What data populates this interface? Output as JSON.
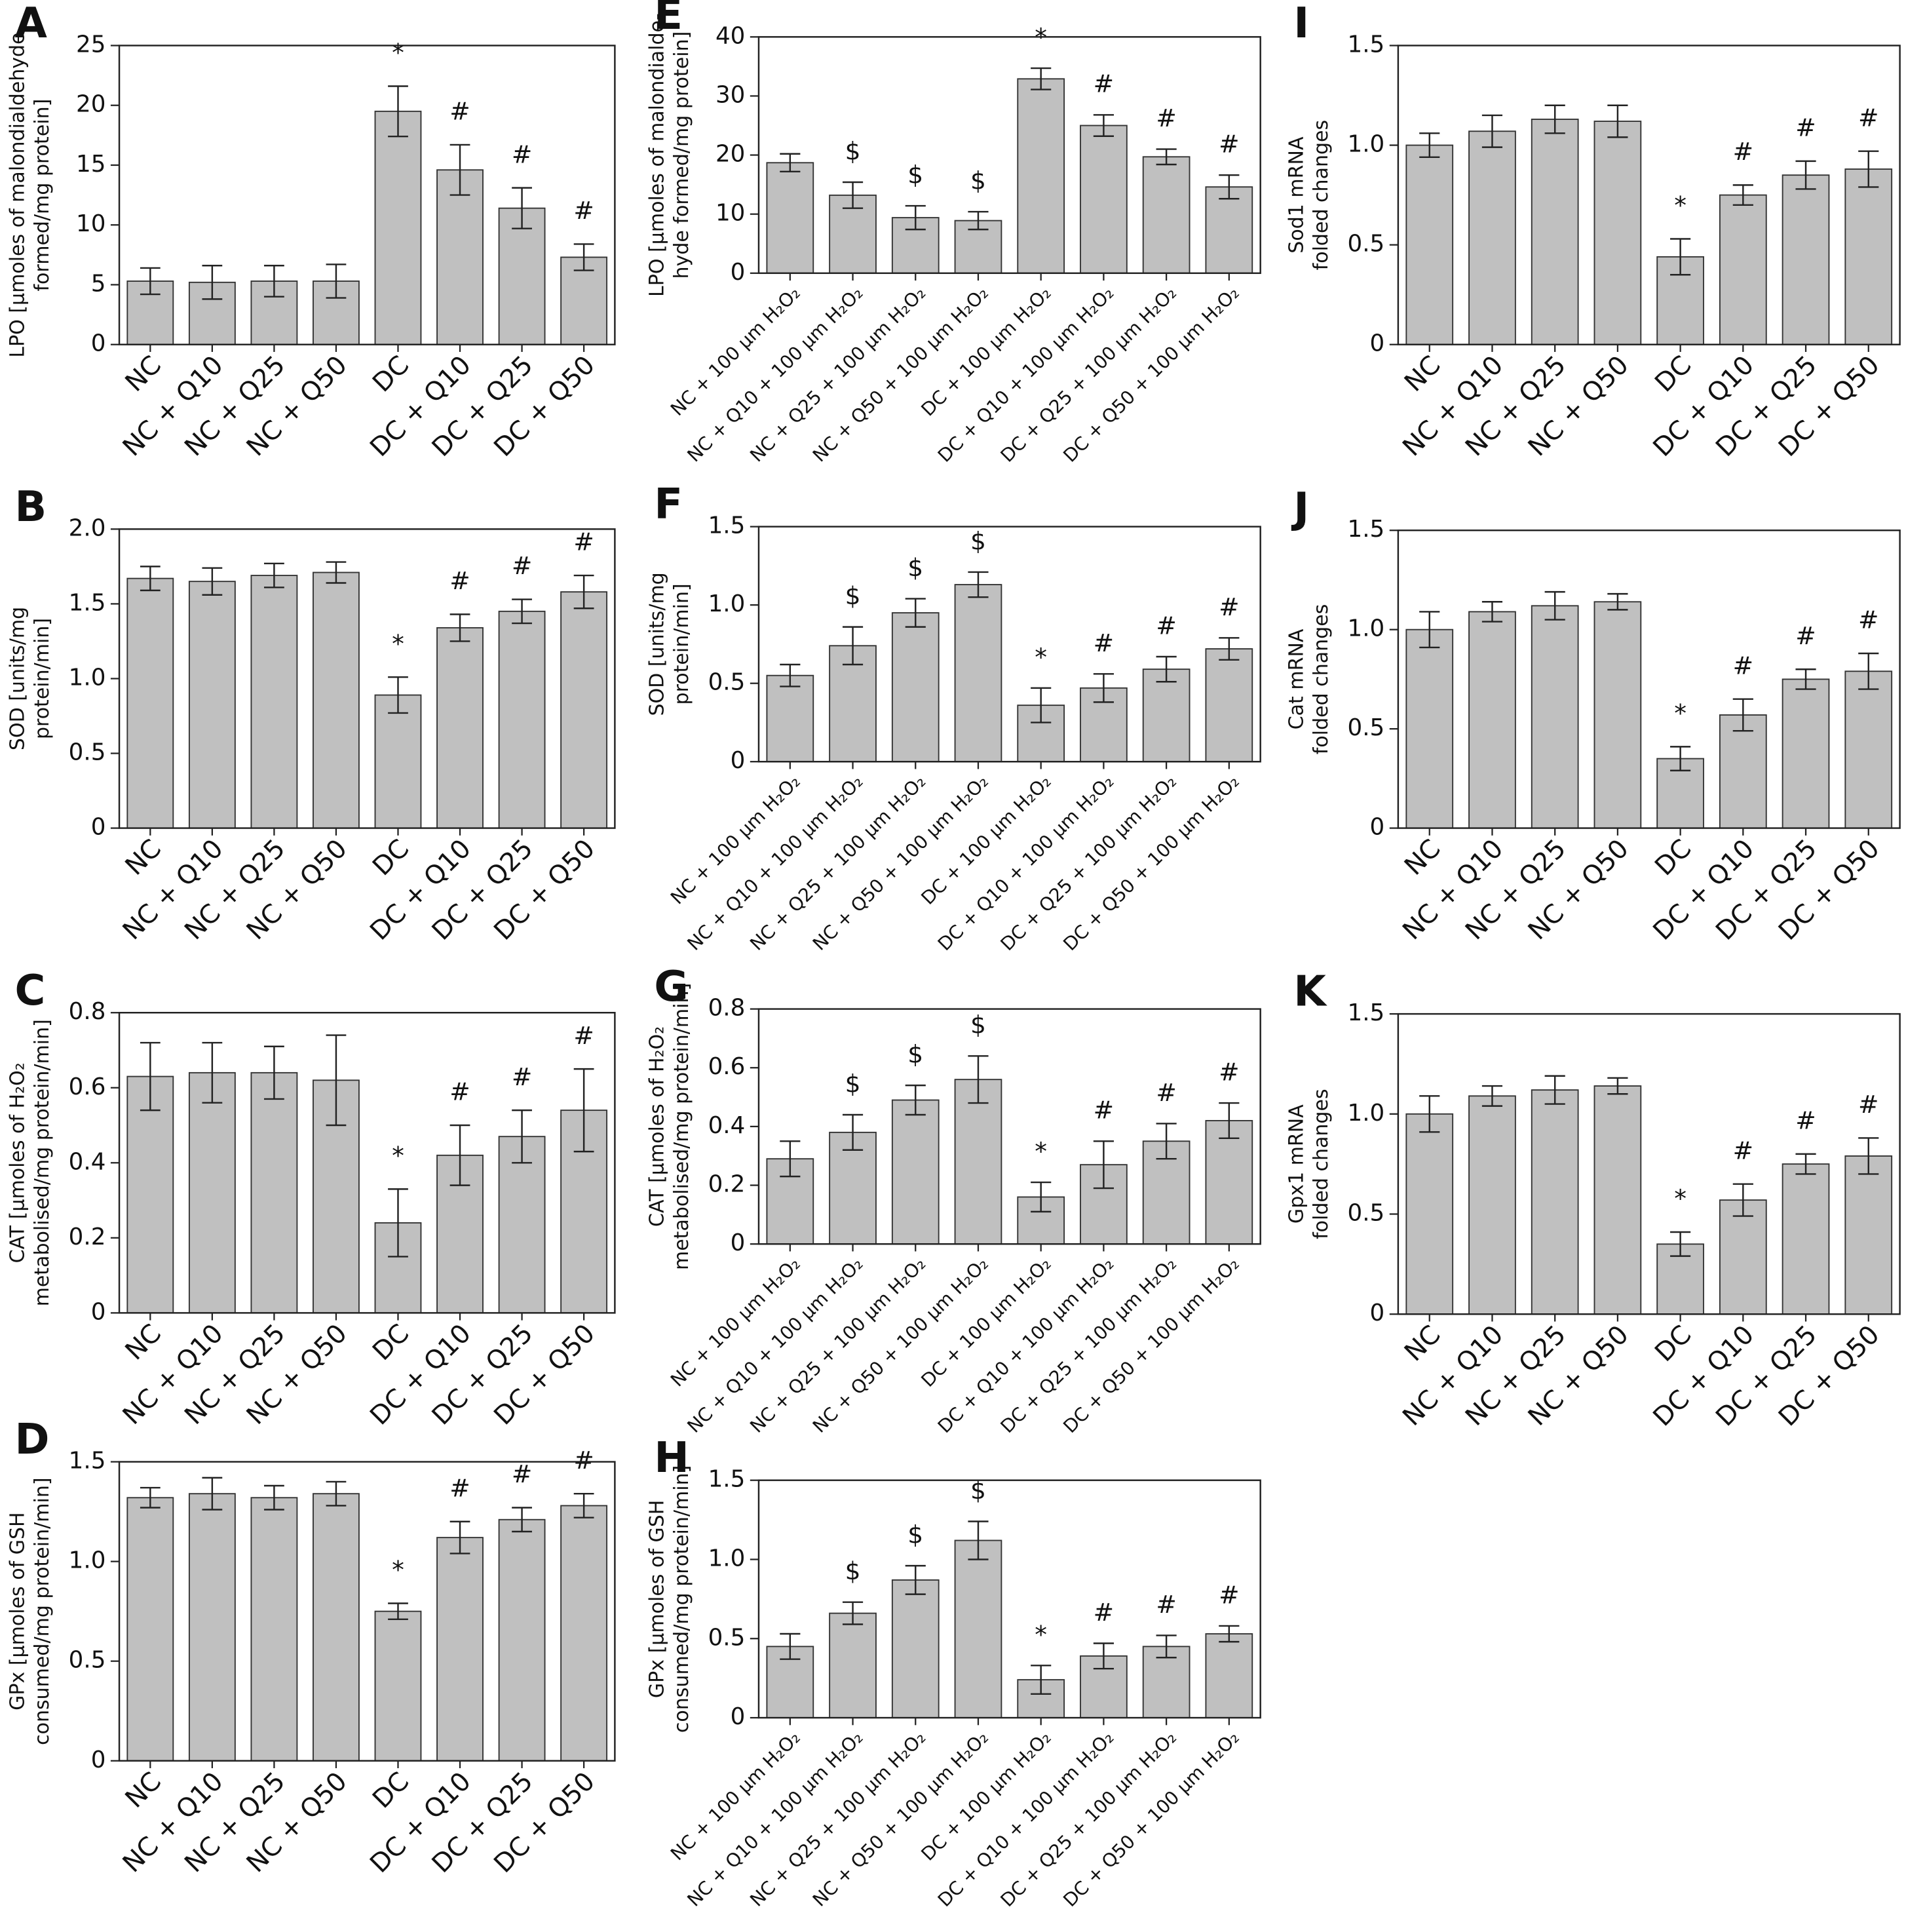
{
  "chart_data": [
    {
      "type": "bar",
      "title": "A",
      "ylabel": [
        "LPO [μmoles of malondialdehyde",
        "formed/mg protein]"
      ],
      "categories": [
        "NC",
        "NC + Q10",
        "NC + Q25",
        "NC + Q50",
        "DC",
        "DC + Q10",
        "DC + Q25",
        "DC + Q50"
      ],
      "values": [
        5.3,
        5.2,
        5.3,
        5.3,
        19.5,
        14.6,
        11.4,
        7.3
      ],
      "errors": [
        1.1,
        1.4,
        1.3,
        1.4,
        2.1,
        2.1,
        1.7,
        1.1
      ],
      "annotations": [
        null,
        null,
        null,
        null,
        "*",
        "#",
        "#",
        "#"
      ],
      "color": "#c0c0c0",
      "ylim": [
        0,
        25
      ],
      "yticks": [
        0,
        5,
        10,
        15,
        20,
        25
      ]
    },
    {
      "type": "bar",
      "title": "B",
      "ylabel": [
        "SOD [units/mg",
        "protein/min]"
      ],
      "categories": [
        "NC",
        "NC + Q10",
        "NC + Q25",
        "NC + Q50",
        "DC",
        "DC + Q10",
        "DC + Q25",
        "DC + Q50"
      ],
      "values": [
        1.67,
        1.65,
        1.69,
        1.71,
        0.89,
        1.34,
        1.45,
        1.58
      ],
      "errors": [
        0.08,
        0.09,
        0.08,
        0.07,
        0.12,
        0.09,
        0.08,
        0.11
      ],
      "annotations": [
        null,
        null,
        null,
        null,
        "*",
        "#",
        "#",
        "#"
      ],
      "color": "#c0c0c0",
      "ylim": [
        0,
        2
      ],
      "yticks": [
        0,
        0.5,
        {
          "value": 1,
          "label": "1.0"
        },
        1.5,
        {
          "value": 2,
          "label": "2.0"
        }
      ]
    },
    {
      "type": "bar",
      "title": "C",
      "ylabel": [
        "CAT [μmoles of H₂O₂",
        "metabolised/mg protein/min]"
      ],
      "categories": [
        "NC",
        "NC + Q10",
        "NC + Q25",
        "NC + Q50",
        "DC",
        "DC + Q10",
        "DC + Q25",
        "DC + Q50"
      ],
      "values": [
        0.63,
        0.64,
        0.64,
        0.62,
        0.24,
        0.42,
        0.47,
        0.54
      ],
      "errors": [
        0.09,
        0.08,
        0.07,
        0.12,
        0.09,
        0.08,
        0.07,
        0.11
      ],
      "annotations": [
        null,
        null,
        null,
        null,
        "*",
        "#",
        "#",
        "#"
      ],
      "color": "#c0c0c0",
      "ylim": [
        0,
        0.8
      ],
      "yticks": [
        0,
        0.2,
        0.4,
        0.6,
        0.8
      ]
    },
    {
      "type": "bar",
      "title": "D",
      "ylabel": [
        "GPx [μmoles of GSH",
        "consumed/mg protein/min]"
      ],
      "categories": [
        "NC",
        "NC + Q10",
        "NC + Q25",
        "NC + Q50",
        "DC",
        "DC + Q10",
        "DC + Q25",
        "DC + Q50"
      ],
      "values": [
        1.32,
        1.34,
        1.32,
        1.34,
        0.75,
        1.12,
        1.21,
        1.28
      ],
      "errors": [
        0.05,
        0.08,
        0.06,
        0.06,
        0.04,
        0.08,
        0.06,
        0.06
      ],
      "annotations": [
        null,
        null,
        null,
        null,
        "*",
        "#",
        "#",
        "#"
      ],
      "color": "#c0c0c0",
      "ylim": [
        0,
        1.5
      ],
      "yticks": [
        0,
        0.5,
        {
          "value": 1,
          "label": "1.0"
        },
        1.5
      ]
    },
    {
      "type": "bar",
      "title": "E",
      "ylabel": [
        "LPO [μmoles of malondialde-",
        "hyde formed/mg protein]"
      ],
      "categories": [
        "NC + 100 μm H₂O₂",
        "NC + Q10 + 100 μm H₂O₂",
        "NC + Q25 + 100 μm H₂O₂",
        "NC + Q50 + 100 μm H₂O₂",
        "DC + 100 μm H₂O₂",
        "DC + Q10 + 100 μm H₂O₂",
        "DC + Q25 + 100 μm H₂O₂",
        "DC + Q50 + 100 μm H₂O₂"
      ],
      "values": [
        18.7,
        13.2,
        9.4,
        8.9,
        32.9,
        25.0,
        19.7,
        14.6
      ],
      "errors": [
        1.5,
        2.2,
        2.0,
        1.5,
        1.8,
        1.8,
        1.3,
        2.0
      ],
      "annotations": [
        null,
        "$",
        "$",
        "$",
        "*",
        "#",
        "#",
        "#"
      ],
      "color": "#c0c0c0",
      "ylim": [
        0,
        40
      ],
      "yticks": [
        0,
        10,
        20,
        30,
        40
      ]
    },
    {
      "type": "bar",
      "title": "F",
      "ylabel": [
        "SOD [units/mg",
        "protein/min]"
      ],
      "categories": [
        "NC + 100 μm H₂O₂",
        "NC + Q10 + 100 μm H₂O₂",
        "NC + Q25 + 100 μm H₂O₂",
        "NC + Q50 + 100 μm H₂O₂",
        "DC + 100 μm H₂O₂",
        "DC + Q10 + 100 μm H₂O₂",
        "DC + Q25 + 100 μm H₂O₂",
        "DC + Q50 + 100 μm H₂O₂"
      ],
      "values": [
        0.55,
        0.74,
        0.95,
        1.13,
        0.36,
        0.47,
        0.59,
        0.72
      ],
      "errors": [
        0.07,
        0.12,
        0.09,
        0.08,
        0.11,
        0.09,
        0.08,
        0.07
      ],
      "annotations": [
        null,
        "$",
        "$",
        "$",
        "*",
        "#",
        "#",
        "#"
      ],
      "color": "#c0c0c0",
      "ylim": [
        0,
        1.5
      ],
      "yticks": [
        0,
        0.5,
        {
          "value": 1,
          "label": "1.0"
        },
        1.5
      ]
    },
    {
      "type": "bar",
      "title": "G",
      "ylabel": [
        "CAT [μmoles of H₂O₂",
        "metabolised/mg protein/min]"
      ],
      "categories": [
        "NC + 100 μm H₂O₂",
        "NC + Q10 + 100 μm H₂O₂",
        "NC + Q25 + 100 μm H₂O₂",
        "NC + Q50 + 100 μm H₂O₂",
        "DC + 100 μm H₂O₂",
        "DC + Q10 + 100 μm H₂O₂",
        "DC + Q25 + 100 μm H₂O₂",
        "DC + Q50 + 100 μm H₂O₂"
      ],
      "values": [
        0.29,
        0.38,
        0.49,
        0.56,
        0.16,
        0.27,
        0.35,
        0.42
      ],
      "errors": [
        0.06,
        0.06,
        0.05,
        0.08,
        0.05,
        0.08,
        0.06,
        0.06
      ],
      "annotations": [
        null,
        "$",
        "$",
        "$",
        "*",
        "#",
        "#",
        "#"
      ],
      "color": "#c0c0c0",
      "ylim": [
        0,
        0.8
      ],
      "yticks": [
        0,
        0.2,
        0.4,
        0.6,
        0.8
      ]
    },
    {
      "type": "bar",
      "title": "H",
      "ylabel": [
        "GPx [μmoles of GSH",
        "consumed/mg protein/min]"
      ],
      "categories": [
        "NC + 100 μm H₂O₂",
        "NC + Q10 + 100 μm H₂O₂",
        "NC + Q25 + 100 μm H₂O₂",
        "NC + Q50 + 100 μm H₂O₂",
        "DC + 100 μm H₂O₂",
        "DC + Q10 + 100 μm H₂O₂",
        "DC + Q25 + 100 μm H₂O₂",
        "DC + Q50 + 100 μm H₂O₂"
      ],
      "values": [
        0.45,
        0.66,
        0.87,
        1.12,
        0.24,
        0.39,
        0.45,
        0.53
      ],
      "errors": [
        0.08,
        0.07,
        0.09,
        0.12,
        0.09,
        0.08,
        0.07,
        0.05
      ],
      "annotations": [
        null,
        "$",
        "$",
        "$",
        "*",
        "#",
        "#",
        "#"
      ],
      "color": "#c0c0c0",
      "ylim": [
        0,
        1.5
      ],
      "yticks": [
        0,
        0.5,
        {
          "value": 1,
          "label": "1.0"
        },
        1.5
      ]
    },
    {
      "type": "bar",
      "title": "I",
      "ylabel": [
        "Sod1 mRNA",
        "folded changes"
      ],
      "categories": [
        "NC",
        "NC + Q10",
        "NC + Q25",
        "NC + Q50",
        "DC",
        "DC + Q10",
        "DC + Q25",
        "DC + Q50"
      ],
      "values": [
        1.0,
        1.07,
        1.13,
        1.12,
        0.44,
        0.75,
        0.85,
        0.88
      ],
      "errors": [
        0.06,
        0.08,
        0.07,
        0.08,
        0.09,
        0.05,
        0.07,
        0.09
      ],
      "annotations": [
        null,
        null,
        null,
        null,
        "*",
        "#",
        "#",
        "#"
      ],
      "color": "#c0c0c0",
      "ylim": [
        0,
        1.5
      ],
      "yticks": [
        0,
        0.5,
        {
          "value": 1,
          "label": "1.0"
        },
        1.5
      ]
    },
    {
      "type": "bar",
      "title": "J",
      "ylabel": [
        "Cat mRNA",
        "folded changes"
      ],
      "categories": [
        "NC",
        "NC + Q10",
        "NC + Q25",
        "NC + Q50",
        "DC",
        "DC + Q10",
        "DC + Q25",
        "DC + Q50"
      ],
      "values": [
        1.0,
        1.09,
        1.12,
        1.14,
        0.35,
        0.57,
        0.75,
        0.79
      ],
      "errors": [
        0.09,
        0.05,
        0.07,
        0.04,
        0.06,
        0.08,
        0.05,
        0.09
      ],
      "annotations": [
        null,
        null,
        null,
        null,
        "*",
        "#",
        "#",
        "#"
      ],
      "color": "#c0c0c0",
      "ylim": [
        0,
        1.5
      ],
      "yticks": [
        0,
        0.5,
        {
          "value": 1,
          "label": "1.0"
        },
        1.5
      ]
    },
    {
      "type": "bar",
      "title": "K",
      "ylabel": [
        "Gpx1 mRNA",
        "folded changes"
      ],
      "categories": [
        "NC",
        "NC + Q10",
        "NC + Q25",
        "NC + Q50",
        "DC",
        "DC + Q10",
        "DC + Q25",
        "DC + Q50"
      ],
      "values": [
        1.0,
        1.09,
        1.12,
        1.14,
        0.35,
        0.57,
        0.75,
        0.79
      ],
      "errors": [
        0.09,
        0.05,
        0.07,
        0.04,
        0.06,
        0.08,
        0.05,
        0.09
      ],
      "annotations": [
        null,
        null,
        null,
        null,
        "*",
        "#",
        "#",
        "#"
      ],
      "color": "#c0c0c0",
      "ylim": [
        0,
        1.5
      ],
      "yticks": [
        0,
        0.5,
        {
          "value": 1,
          "label": "1.0"
        },
        1.5
      ]
    }
  ]
}
